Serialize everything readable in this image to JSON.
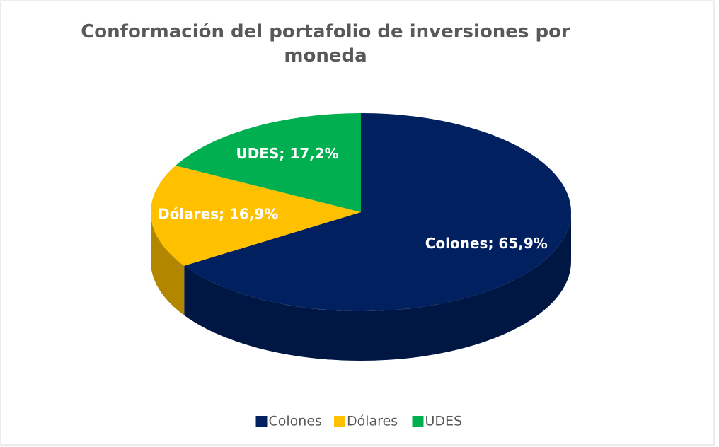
{
  "chart_data": {
    "type": "pie",
    "title": "Conformación del portafolio de inversiones por moneda",
    "categories": [
      "Colones",
      "Dólares",
      "UDES"
    ],
    "values": [
      65.9,
      16.9,
      17.2
    ],
    "value_labels": [
      "Colones; 65,9%",
      "Dólares; 16,9%",
      "UDES; 17,2%"
    ],
    "colors": [
      "#002060",
      "#ffc000",
      "#00b050"
    ],
    "legend": "bottom"
  }
}
